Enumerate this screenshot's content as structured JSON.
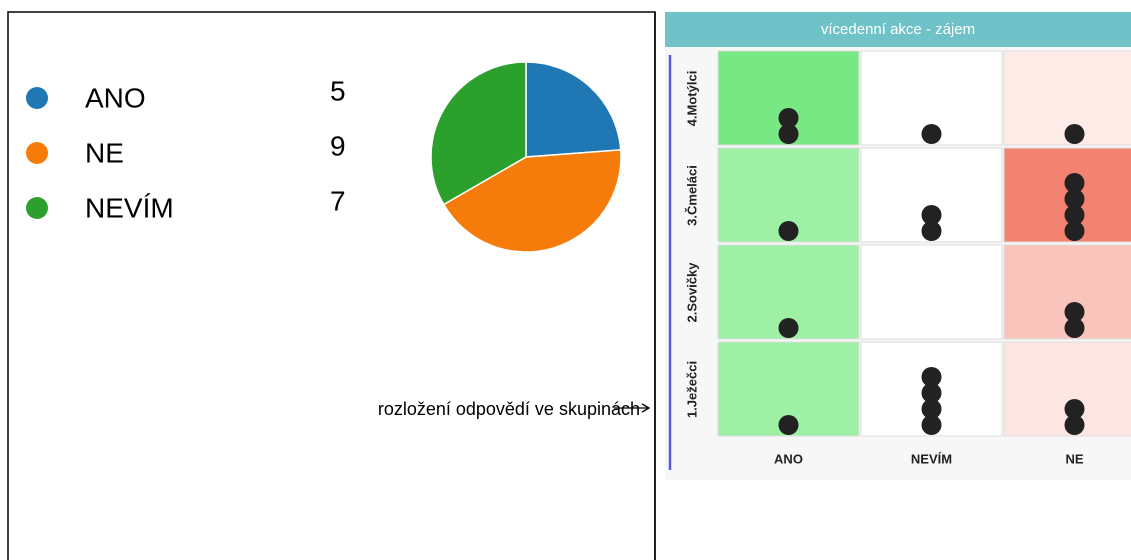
{
  "chart_data": [
    {
      "type": "pie",
      "categories": [
        "ANO",
        "NE",
        "NEVÍM"
      ],
      "values": [
        5,
        9,
        7
      ],
      "colors": [
        "#1f77b4",
        "#f57c0a",
        "#2ca02c"
      ]
    },
    {
      "type": "dot-matrix",
      "title": "vícedenní akce - zájem",
      "rows": [
        "4.Motýlci",
        "3.Čmeláci",
        "2.Sovičky",
        "1.Ježečci"
      ],
      "columns": [
        "ANO",
        "NEVÍM",
        "NE"
      ],
      "values": [
        [
          2,
          1,
          1
        ],
        [
          1,
          2,
          4
        ],
        [
          1,
          0,
          2
        ],
        [
          1,
          4,
          2
        ]
      ],
      "colors": [
        [
          "#77e884",
          "#ffffff",
          "#fdebe7"
        ],
        [
          "#9ef0a5",
          "#ffffff",
          "#f48270"
        ],
        [
          "#9ef0a5",
          "#ffffff",
          "#f8c4bb"
        ],
        [
          "#9ef0a5",
          "#ffffff",
          "#fde6e1"
        ]
      ],
      "annotation": "rozložení odpovědí ve skupinách"
    }
  ]
}
